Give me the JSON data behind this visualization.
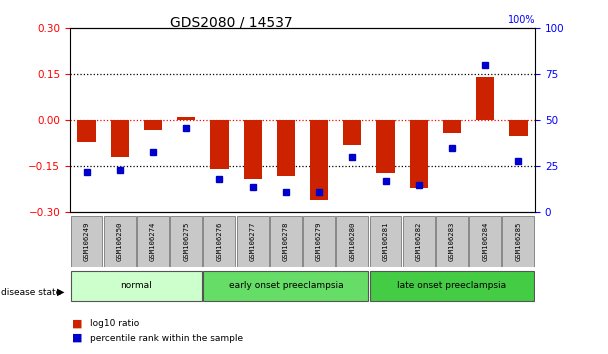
{
  "title": "GDS2080 / 14537",
  "samples": [
    "GSM106249",
    "GSM106250",
    "GSM106274",
    "GSM106275",
    "GSM106276",
    "GSM106277",
    "GSM106278",
    "GSM106279",
    "GSM106280",
    "GSM106281",
    "GSM106282",
    "GSM106283",
    "GSM106284",
    "GSM106285"
  ],
  "log10_ratio": [
    -0.07,
    -0.12,
    -0.03,
    0.01,
    -0.16,
    -0.19,
    -0.18,
    -0.26,
    -0.08,
    -0.17,
    -0.22,
    -0.04,
    0.14,
    -0.05
  ],
  "percentile_rank": [
    22,
    23,
    33,
    46,
    18,
    14,
    11,
    11,
    30,
    17,
    15,
    35,
    80,
    28
  ],
  "groups": [
    {
      "label": "normal",
      "start": 0,
      "end": 3,
      "color": "#ccffcc"
    },
    {
      "label": "early onset preeclampsia",
      "start": 4,
      "end": 8,
      "color": "#66dd66"
    },
    {
      "label": "late onset preeclampsia",
      "start": 9,
      "end": 13,
      "color": "#44cc44"
    }
  ],
  "bar_color": "#cc2200",
  "dot_color": "#0000cc",
  "ylim_left": [
    -0.3,
    0.3
  ],
  "ylim_right": [
    0,
    100
  ],
  "yticks_left": [
    -0.3,
    -0.15,
    0,
    0.15,
    0.3
  ],
  "yticks_right": [
    0,
    25,
    50,
    75,
    100
  ],
  "hline_dotted": [
    0.15,
    -0.15
  ],
  "background_color": "#ffffff",
  "plot_bg_color": "#ffffff",
  "legend_items": [
    {
      "label": "log10 ratio",
      "color": "#cc2200"
    },
    {
      "label": "percentile rank within the sample",
      "color": "#0000cc"
    }
  ]
}
